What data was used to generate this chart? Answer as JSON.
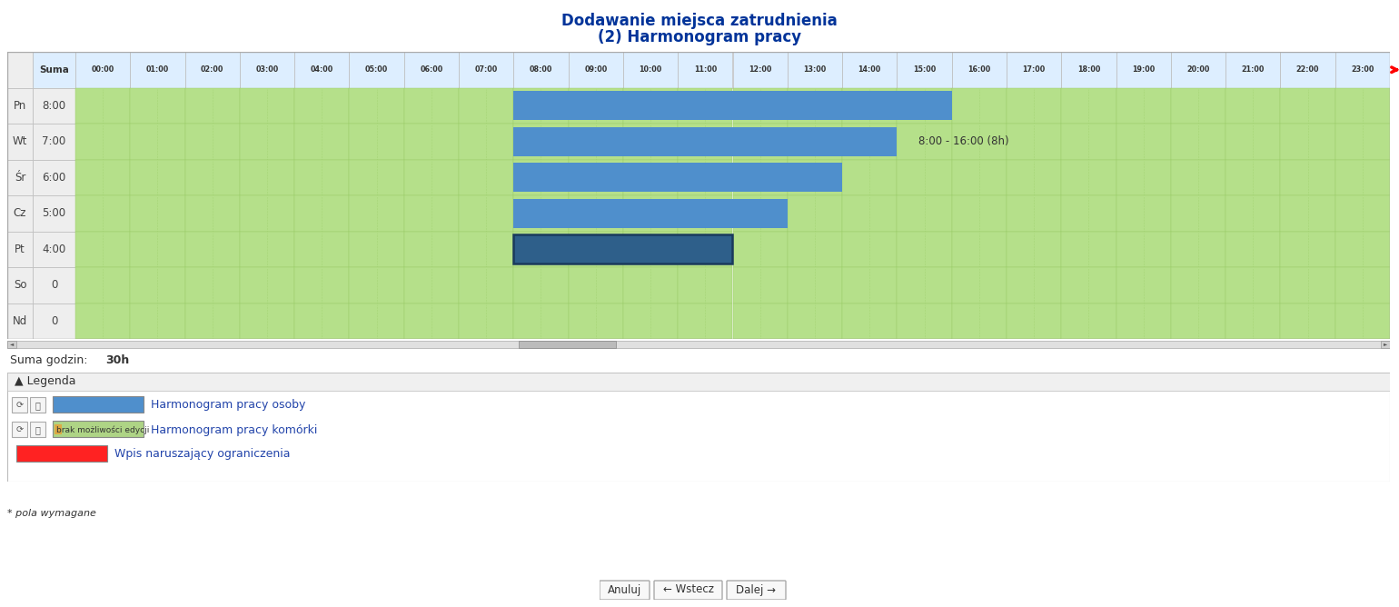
{
  "title_line1": "Dodawanie miejsca zatrudnienia",
  "title_line2": "(2) Harmonogram pracy",
  "title_color": "#003399",
  "days": [
    "Pn",
    "Wt",
    "Śr",
    "Cz",
    "Pt",
    "So",
    "Nd"
  ],
  "day_sums": [
    "8:00",
    "7:00",
    "6:00",
    "5:00",
    "4:00",
    "0",
    "0"
  ],
  "hours": [
    "00:00",
    "01:00",
    "02:00",
    "03:00",
    "04:00",
    "05:00",
    "06:00",
    "07:00",
    "08:00",
    "09:00",
    "10:00",
    "11:00",
    "12:00",
    "13:00",
    "14:00",
    "15:00",
    "16:00",
    "17:00",
    "18:00",
    "19:00",
    "20:00",
    "21:00",
    "22:00",
    "23:00"
  ],
  "bars": [
    {
      "day": "Pn",
      "start": 8,
      "end": 16,
      "color": "#4f8fcc",
      "border": false
    },
    {
      "day": "Wt",
      "start": 8,
      "end": 15,
      "color": "#4f8fcc",
      "border": false
    },
    {
      "day": "Śr",
      "start": 8,
      "end": 14,
      "color": "#4f8fcc",
      "border": false
    },
    {
      "day": "Cz",
      "start": 8,
      "end": 13,
      "color": "#4f8fcc",
      "border": false
    },
    {
      "day": "Pt",
      "start": 8,
      "end": 12,
      "color": "#2e5f8a",
      "border": true
    }
  ],
  "annotation": "8:00 - 16:00 (8h)",
  "annotation_day": "Wt",
  "annotation_hour": 15.4,
  "cell_bg": "#b5e08a",
  "cell_bg_light": "#c8ebb0",
  "header_bg": "#ddeeff",
  "day_label_bg": "#eeeeee",
  "grid_color": "#99cc66",
  "grid_color_dotted": "#99cc66",
  "border_color": "#bbbbbb",
  "outer_border": "#aaaaaa",
  "total_hours": "30h",
  "legend_items": [
    {
      "color": "#4f8fcc",
      "label": "Harmonogram pracy osoby",
      "has_icons": true,
      "text_overlay": null
    },
    {
      "color": "#aed485",
      "label": "Harmonogram pracy komórki",
      "has_icons": true,
      "text_overlay": "brak możliwości edycji"
    },
    {
      "color": "#ff2222",
      "label": "Wpis naruszający ograniczenia",
      "has_icons": false,
      "text_overlay": null
    }
  ],
  "footer_buttons": [
    "Anuluj",
    "← Wstecz",
    "Dalej →"
  ],
  "footer_note": "* pola wymagane"
}
